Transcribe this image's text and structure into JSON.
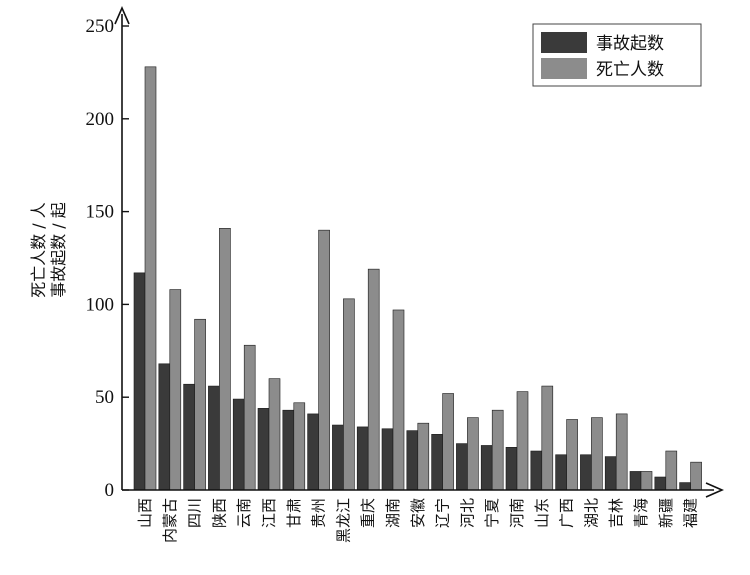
{
  "chart_data": {
    "type": "bar",
    "title": "",
    "xlabel": "",
    "ylabel": [
      "死亡人数 / 人",
      "事故起数 / 起"
    ],
    "ylim": [
      0,
      250
    ],
    "yticks": [
      "0",
      "50",
      "100",
      "150",
      "200",
      "250"
    ],
    "grid": false,
    "legend_position": "top-right",
    "colors": {
      "事故起数": "#3a3a3a",
      "死亡人数": "#8c8c8c"
    },
    "categories": [
      "山西",
      "内蒙古",
      "四川",
      "陕西",
      "云南",
      "江西",
      "甘肃",
      "贵州",
      "黑龙江",
      "重庆",
      "湖南",
      "安徽",
      "辽宁",
      "河北",
      "宁夏",
      "河南",
      "山东",
      "广西",
      "湖北",
      "吉林",
      "青海",
      "新疆",
      "福建"
    ],
    "series": [
      {
        "name": "事故起数",
        "values": [
          117,
          68,
          57,
          56,
          49,
          44,
          43,
          41,
          35,
          34,
          33,
          32,
          30,
          25,
          24,
          23,
          21,
          19,
          19,
          18,
          10,
          7,
          4
        ]
      },
      {
        "name": "死亡人数",
        "values": [
          228,
          108,
          92,
          141,
          78,
          60,
          47,
          140,
          103,
          119,
          97,
          36,
          52,
          39,
          43,
          53,
          56,
          38,
          39,
          41,
          10,
          21,
          15
        ]
      }
    ]
  }
}
